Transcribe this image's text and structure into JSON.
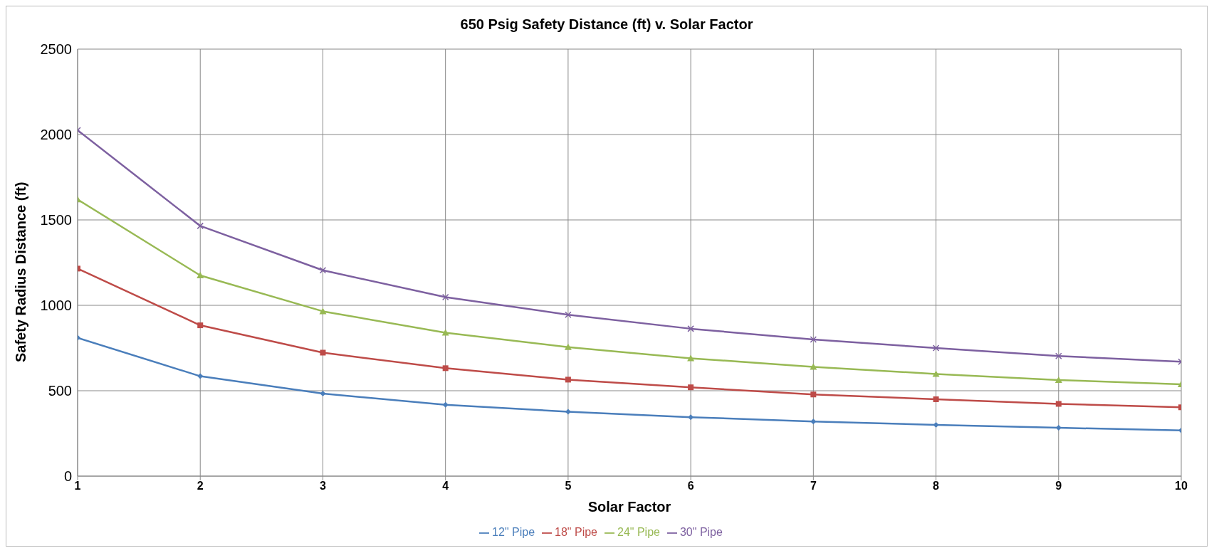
{
  "chart_data": {
    "type": "line",
    "title": "650 Psig Safety Distance (ft) v. Solar Factor",
    "xlabel": "Solar Factor",
    "ylabel": "Safety Radius Distance (ft)",
    "x": [
      1,
      2,
      3,
      4,
      5,
      6,
      7,
      8,
      9,
      10
    ],
    "series": [
      {
        "name": "12\" Pipe",
        "color": "#4a7ebb",
        "marker": "diamond",
        "values": [
          810,
          585,
          483,
          418,
          377,
          345,
          320,
          300,
          283,
          268
        ]
      },
      {
        "name": "18\" Pipe",
        "color": "#be4b48",
        "marker": "square",
        "values": [
          1215,
          883,
          723,
          632,
          565,
          520,
          478,
          450,
          423,
          403
        ]
      },
      {
        "name": "24\" Pipe",
        "color": "#98b954",
        "marker": "triangle",
        "values": [
          1620,
          1175,
          965,
          840,
          755,
          690,
          640,
          598,
          563,
          537
        ]
      },
      {
        "name": "30\" Pipe",
        "color": "#7d60a0",
        "marker": "cross",
        "values": [
          2025,
          1465,
          1205,
          1048,
          945,
          863,
          800,
          750,
          703,
          670
        ]
      }
    ],
    "xlim": [
      1,
      10
    ],
    "xticks": [
      1,
      2,
      3,
      4,
      5,
      6,
      7,
      8,
      9,
      10
    ],
    "ylim": [
      0,
      2500
    ],
    "yticks": [
      0,
      500,
      1000,
      1500,
      2000,
      2500
    ],
    "grid": true,
    "legend": "bottom",
    "line_style": "solid"
  }
}
